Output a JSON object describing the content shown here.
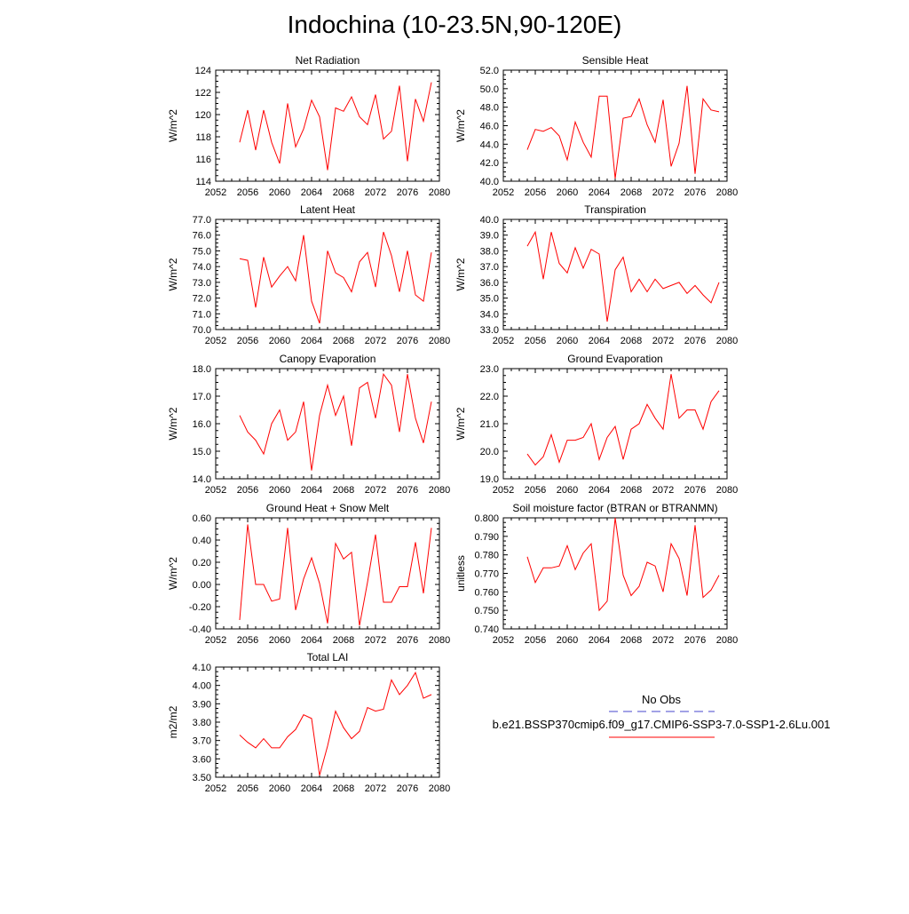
{
  "figure": {
    "title": "Indochina (10-23.5N,90-120E)",
    "line_color": "#ff0000",
    "obs_color": "#4444cc",
    "legend": {
      "obs_label": "No Obs",
      "case_label": "b.e21.BSSP370cmip6.f09_g17.CMIP6-SSP3-7.0-SSP1-2.6Lu.001"
    }
  },
  "chart_data": [
    {
      "type": "line",
      "title": "Net Radiation",
      "xlabel": "",
      "ylabel": "W/m^2",
      "xlim": [
        2052,
        2080
      ],
      "ylim": [
        114,
        124
      ],
      "x_ticks": [
        2052,
        2056,
        2060,
        2064,
        2068,
        2072,
        2076,
        2080
      ],
      "y_ticks": [
        114,
        116,
        118,
        120,
        122,
        124
      ],
      "y_tick_labels": [
        "114",
        "116",
        "118",
        "120",
        "122",
        "124"
      ],
      "series": [
        {
          "x": [
            2055,
            2056,
            2057,
            2058,
            2059,
            2060,
            2061,
            2062,
            2063,
            2064,
            2065,
            2066,
            2067,
            2068,
            2069,
            2070,
            2071,
            2072,
            2073,
            2074,
            2075,
            2076,
            2077,
            2078,
            2079
          ],
          "values": [
            117.5,
            120.4,
            116.8,
            120.4,
            117.5,
            115.6,
            121.0,
            117.1,
            118.7,
            121.3,
            119.8,
            115.0,
            120.6,
            120.3,
            121.6,
            119.8,
            119.1,
            121.8,
            117.8,
            118.5,
            122.6,
            115.8,
            121.4,
            119.4,
            122.9
          ]
        }
      ]
    },
    {
      "type": "line",
      "title": "Sensible Heat",
      "xlabel": "",
      "ylabel": "W/m^2",
      "xlim": [
        2052,
        2080
      ],
      "ylim": [
        40.0,
        52.0
      ],
      "x_ticks": [
        2052,
        2056,
        2060,
        2064,
        2068,
        2072,
        2076,
        2080
      ],
      "y_ticks": [
        40,
        42,
        44,
        46,
        48,
        50,
        52
      ],
      "y_tick_labels": [
        "40.0",
        "42.0",
        "44.0",
        "46.0",
        "48.0",
        "50.0",
        "52.0"
      ],
      "series": [
        {
          "x": [
            2055,
            2056,
            2057,
            2058,
            2059,
            2060,
            2061,
            2062,
            2063,
            2064,
            2065,
            2066,
            2067,
            2068,
            2069,
            2070,
            2071,
            2072,
            2073,
            2074,
            2075,
            2076,
            2077,
            2078,
            2079
          ],
          "values": [
            43.4,
            45.6,
            45.4,
            45.8,
            44.9,
            42.3,
            46.4,
            44.2,
            42.6,
            49.2,
            49.2,
            40.3,
            46.8,
            47.0,
            48.9,
            46.1,
            44.2,
            48.8,
            41.6,
            44.1,
            50.3,
            40.8,
            48.9,
            47.7,
            47.5
          ]
        }
      ]
    },
    {
      "type": "line",
      "title": "Latent Heat",
      "xlabel": "",
      "ylabel": "W/m^2",
      "xlim": [
        2052,
        2080
      ],
      "ylim": [
        70.0,
        77.0
      ],
      "x_ticks": [
        2052,
        2056,
        2060,
        2064,
        2068,
        2072,
        2076,
        2080
      ],
      "y_ticks": [
        70,
        71,
        72,
        73,
        74,
        75,
        76,
        77
      ],
      "y_tick_labels": [
        "70.0",
        "71.0",
        "72.0",
        "73.0",
        "74.0",
        "75.0",
        "76.0",
        "77.0"
      ],
      "series": [
        {
          "x": [
            2055,
            2056,
            2057,
            2058,
            2059,
            2060,
            2061,
            2062,
            2063,
            2064,
            2065,
            2066,
            2067,
            2068,
            2069,
            2070,
            2071,
            2072,
            2073,
            2074,
            2075,
            2076,
            2077,
            2078,
            2079
          ],
          "values": [
            74.5,
            74.4,
            71.4,
            74.6,
            72.7,
            73.4,
            74.0,
            73.1,
            76.0,
            71.8,
            70.4,
            75.0,
            73.6,
            73.3,
            72.4,
            74.3,
            74.9,
            72.7,
            76.2,
            74.7,
            72.4,
            75.0,
            72.2,
            71.8,
            74.9
          ]
        }
      ]
    },
    {
      "type": "line",
      "title": "Transpiration",
      "xlabel": "",
      "ylabel": "W/m^2",
      "xlim": [
        2052,
        2080
      ],
      "ylim": [
        33.0,
        40.0
      ],
      "x_ticks": [
        2052,
        2056,
        2060,
        2064,
        2068,
        2072,
        2076,
        2080
      ],
      "y_ticks": [
        33,
        34,
        35,
        36,
        37,
        38,
        39,
        40
      ],
      "y_tick_labels": [
        "33.0",
        "34.0",
        "35.0",
        "36.0",
        "37.0",
        "38.0",
        "39.0",
        "40.0"
      ],
      "series": [
        {
          "x": [
            2055,
            2056,
            2057,
            2058,
            2059,
            2060,
            2061,
            2062,
            2063,
            2064,
            2065,
            2066,
            2067,
            2068,
            2069,
            2070,
            2071,
            2072,
            2073,
            2074,
            2075,
            2076,
            2077,
            2078,
            2079
          ],
          "values": [
            38.3,
            39.2,
            36.2,
            39.2,
            37.2,
            36.6,
            38.2,
            36.9,
            38.1,
            37.8,
            33.5,
            36.8,
            37.6,
            35.4,
            36.2,
            35.4,
            36.2,
            35.6,
            35.8,
            36.0,
            35.3,
            35.8,
            35.2,
            34.7,
            36.0
          ]
        }
      ]
    },
    {
      "type": "line",
      "title": "Canopy Evaporation",
      "xlabel": "",
      "ylabel": "W/m^2",
      "xlim": [
        2052,
        2080
      ],
      "ylim": [
        14.0,
        18.0
      ],
      "x_ticks": [
        2052,
        2056,
        2060,
        2064,
        2068,
        2072,
        2076,
        2080
      ],
      "y_ticks": [
        14,
        15,
        16,
        17,
        18
      ],
      "y_tick_labels": [
        "14.0",
        "15.0",
        "16.0",
        "17.0",
        "18.0"
      ],
      "series": [
        {
          "x": [
            2055,
            2056,
            2057,
            2058,
            2059,
            2060,
            2061,
            2062,
            2063,
            2064,
            2065,
            2066,
            2067,
            2068,
            2069,
            2070,
            2071,
            2072,
            2073,
            2074,
            2075,
            2076,
            2077,
            2078,
            2079
          ],
          "values": [
            16.3,
            15.7,
            15.4,
            14.9,
            16.0,
            16.5,
            15.4,
            15.7,
            16.8,
            14.3,
            16.3,
            17.4,
            16.3,
            17.0,
            15.2,
            17.3,
            17.5,
            16.2,
            17.8,
            17.4,
            15.7,
            17.8,
            16.2,
            15.3,
            16.8
          ]
        }
      ]
    },
    {
      "type": "line",
      "title": "Ground Evaporation",
      "xlabel": "",
      "ylabel": "W/m^2",
      "xlim": [
        2052,
        2080
      ],
      "ylim": [
        19.0,
        23.0
      ],
      "x_ticks": [
        2052,
        2056,
        2060,
        2064,
        2068,
        2072,
        2076,
        2080
      ],
      "y_ticks": [
        19,
        20,
        21,
        22,
        23
      ],
      "y_tick_labels": [
        "19.0",
        "20.0",
        "21.0",
        "22.0",
        "23.0"
      ],
      "series": [
        {
          "x": [
            2055,
            2056,
            2057,
            2058,
            2059,
            2060,
            2061,
            2062,
            2063,
            2064,
            2065,
            2066,
            2067,
            2068,
            2069,
            2070,
            2071,
            2072,
            2073,
            2074,
            2075,
            2076,
            2077,
            2078,
            2079
          ],
          "values": [
            19.9,
            19.5,
            19.8,
            20.6,
            19.6,
            20.4,
            20.4,
            20.5,
            21.0,
            19.7,
            20.5,
            20.9,
            19.7,
            20.8,
            21.0,
            21.7,
            21.2,
            20.8,
            22.8,
            21.2,
            21.5,
            21.5,
            20.8,
            21.8,
            22.2
          ]
        }
      ]
    },
    {
      "type": "line",
      "title": "Ground Heat + Snow Melt",
      "xlabel": "",
      "ylabel": "W/m^2",
      "xlim": [
        2052,
        2080
      ],
      "ylim": [
        -0.4,
        0.6
      ],
      "x_ticks": [
        2052,
        2056,
        2060,
        2064,
        2068,
        2072,
        2076,
        2080
      ],
      "y_ticks": [
        -0.4,
        -0.2,
        0.0,
        0.2,
        0.4,
        0.6
      ],
      "y_tick_labels": [
        "-0.40",
        "-0.20",
        "0.00",
        "0.20",
        "0.40",
        "0.60"
      ],
      "series": [
        {
          "x": [
            2055,
            2056,
            2057,
            2058,
            2059,
            2060,
            2061,
            2062,
            2063,
            2064,
            2065,
            2066,
            2067,
            2068,
            2069,
            2070,
            2071,
            2072,
            2073,
            2074,
            2075,
            2076,
            2077,
            2078,
            2079
          ],
          "values": [
            -0.32,
            0.54,
            0.0,
            0.0,
            -0.15,
            -0.13,
            0.51,
            -0.23,
            0.05,
            0.24,
            0.01,
            -0.35,
            0.37,
            0.23,
            0.29,
            -0.37,
            0.02,
            0.45,
            -0.16,
            -0.16,
            -0.02,
            -0.02,
            0.38,
            -0.08,
            0.51
          ]
        }
      ]
    },
    {
      "type": "line",
      "title": "Soil moisture factor (BTRAN or BTRANMN)",
      "xlabel": "",
      "ylabel": "unitless",
      "xlim": [
        2052,
        2080
      ],
      "ylim": [
        0.74,
        0.8
      ],
      "x_ticks": [
        2052,
        2056,
        2060,
        2064,
        2068,
        2072,
        2076,
        2080
      ],
      "y_ticks": [
        0.74,
        0.75,
        0.76,
        0.77,
        0.78,
        0.79,
        0.8
      ],
      "y_tick_labels": [
        "0.740",
        "0.750",
        "0.760",
        "0.770",
        "0.780",
        "0.790",
        "0.800"
      ],
      "series": [
        {
          "x": [
            2055,
            2056,
            2057,
            2058,
            2059,
            2060,
            2061,
            2062,
            2063,
            2064,
            2065,
            2066,
            2067,
            2068,
            2069,
            2070,
            2071,
            2072,
            2073,
            2074,
            2075,
            2076,
            2077,
            2078,
            2079
          ],
          "values": [
            0.779,
            0.765,
            0.773,
            0.773,
            0.774,
            0.785,
            0.772,
            0.781,
            0.786,
            0.75,
            0.755,
            0.8,
            0.769,
            0.758,
            0.763,
            0.776,
            0.774,
            0.76,
            0.786,
            0.778,
            0.758,
            0.796,
            0.757,
            0.761,
            0.769
          ]
        }
      ]
    },
    {
      "type": "line",
      "title": "Total LAI",
      "xlabel": "",
      "ylabel": "m2/m2",
      "xlim": [
        2052,
        2080
      ],
      "ylim": [
        3.5,
        4.1
      ],
      "x_ticks": [
        2052,
        2056,
        2060,
        2064,
        2068,
        2072,
        2076,
        2080
      ],
      "y_ticks": [
        3.5,
        3.6,
        3.7,
        3.8,
        3.9,
        4.0,
        4.1
      ],
      "y_tick_labels": [
        "3.50",
        "3.60",
        "3.70",
        "3.80",
        "3.90",
        "4.00",
        "4.10"
      ],
      "series": [
        {
          "x": [
            2055,
            2056,
            2057,
            2058,
            2059,
            2060,
            2061,
            2062,
            2063,
            2064,
            2065,
            2066,
            2067,
            2068,
            2069,
            2070,
            2071,
            2072,
            2073,
            2074,
            2075,
            2076,
            2077,
            2078,
            2079
          ],
          "values": [
            3.73,
            3.69,
            3.66,
            3.71,
            3.66,
            3.66,
            3.72,
            3.76,
            3.84,
            3.82,
            3.51,
            3.67,
            3.86,
            3.77,
            3.71,
            3.75,
            3.88,
            3.86,
            3.87,
            4.03,
            3.95,
            4.0,
            4.07,
            3.93,
            3.95
          ]
        }
      ]
    }
  ]
}
